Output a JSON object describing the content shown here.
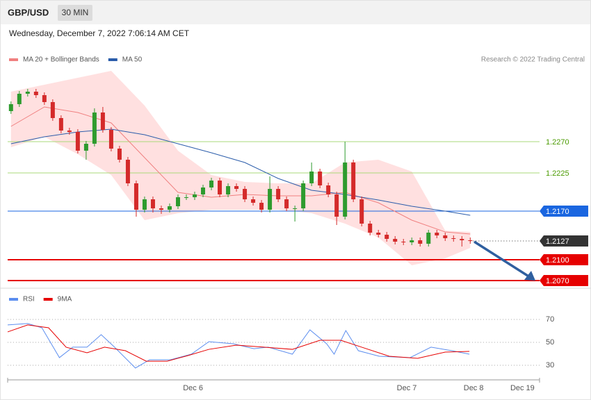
{
  "header": {
    "symbol": "GBP/USD",
    "timeframe": "30 MIN",
    "timestamp": "Wednesday, December 7, 2022 7:06:14 AM CET"
  },
  "chart_data": [
    {
      "type": "candlestick",
      "note": "Research © 2022 Trading Central",
      "xlim": [
        -0.4,
        63.3
      ],
      "ylim": [
        1.206,
        1.238
      ],
      "up_color": "#2e9b2e",
      "down_color": "#d42a2a",
      "open": [
        1.2314,
        1.2324,
        1.2339,
        1.2342,
        1.2337,
        1.2327,
        1.2304,
        1.2286,
        1.2284,
        1.2257,
        1.2267,
        1.2312,
        1.2287,
        1.226,
        1.2244,
        1.221,
        1.2172,
        1.2187,
        1.2174,
        1.2172,
        1.2177,
        1.219,
        1.219,
        1.2194,
        1.2204,
        1.2214,
        1.2194,
        1.2206,
        1.2202,
        1.2187,
        1.2182,
        1.2172,
        1.2202,
        1.2187,
        1.2174,
        1.2174,
        1.221,
        1.2227,
        1.2207,
        1.2194,
        1.2162,
        1.224,
        1.2187,
        1.2152,
        1.2139,
        1.2136,
        1.213,
        1.2126,
        1.2125,
        1.2128,
        1.2123,
        1.2139,
        1.2135,
        1.2131,
        1.213,
        1.2128
      ],
      "high": [
        1.2328,
        1.2343,
        1.2346,
        1.2346,
        1.2341,
        1.2331,
        1.2308,
        1.229,
        1.2288,
        1.2271,
        1.2318,
        1.232,
        1.2291,
        1.2264,
        1.2248,
        1.2214,
        1.2191,
        1.2191,
        1.2178,
        1.2181,
        1.2194,
        1.2194,
        1.2198,
        1.2208,
        1.2218,
        1.2218,
        1.221,
        1.221,
        1.2206,
        1.2191,
        1.2186,
        1.222,
        1.2206,
        1.2191,
        1.2178,
        1.2214,
        1.224,
        1.2231,
        1.2211,
        1.2198,
        1.227,
        1.2244,
        1.2191,
        1.2156,
        1.2143,
        1.214,
        1.2134,
        1.213,
        1.2132,
        1.2132,
        1.2143,
        1.2143,
        1.2139,
        1.2135,
        1.2134,
        1.2132
      ],
      "low": [
        1.231,
        1.232,
        1.2335,
        1.2333,
        1.2323,
        1.23,
        1.2282,
        1.228,
        1.2253,
        1.2244,
        1.2263,
        1.2283,
        1.2256,
        1.224,
        1.2206,
        1.2162,
        1.2168,
        1.2168,
        1.2166,
        1.2168,
        1.2173,
        1.2186,
        1.2186,
        1.219,
        1.22,
        1.219,
        1.219,
        1.2198,
        1.2183,
        1.2178,
        1.2168,
        1.2168,
        1.2183,
        1.217,
        1.2155,
        1.217,
        1.2206,
        1.2203,
        1.219,
        1.215,
        1.2158,
        1.2183,
        1.2148,
        1.2135,
        1.2132,
        1.2126,
        1.2122,
        1.2121,
        1.2121,
        1.2119,
        1.2119,
        1.2131,
        1.2127,
        1.2126,
        1.2119,
        1.2123
      ],
      "close": [
        1.2324,
        1.2339,
        1.2342,
        1.2337,
        1.2327,
        1.2304,
        1.2286,
        1.2284,
        1.2257,
        1.2267,
        1.2312,
        1.2287,
        1.226,
        1.2244,
        1.221,
        1.2172,
        1.2187,
        1.2174,
        1.2172,
        1.2177,
        1.219,
        1.219,
        1.2194,
        1.2204,
        1.2214,
        1.2194,
        1.2206,
        1.2202,
        1.2187,
        1.2182,
        1.2172,
        1.2202,
        1.2187,
        1.2174,
        1.2174,
        1.221,
        1.2227,
        1.2207,
        1.2194,
        1.2162,
        1.224,
        1.2187,
        1.2152,
        1.2139,
        1.2136,
        1.213,
        1.2126,
        1.2125,
        1.2128,
        1.2123,
        1.2139,
        1.2135,
        1.2131,
        1.213,
        1.2128,
        1.2127
      ],
      "overlays": [
        {
          "name": "MA 20 + Bollinger Bands",
          "color": "#f08080",
          "band_color": "#ffd6d6",
          "x": [
            0,
            4,
            8,
            12,
            16,
            20,
            24,
            28,
            32,
            36,
            40,
            44,
            48,
            52,
            55
          ],
          "values": [
            1.2292,
            1.232,
            1.2312,
            1.2297,
            1.2247,
            1.2197,
            1.219,
            1.2194,
            1.2192,
            1.2192,
            1.2197,
            1.2182,
            1.2157,
            1.214,
            1.2137
          ],
          "upper": [
            1.2342,
            1.2352,
            1.2362,
            1.2372,
            1.2322,
            1.2257,
            1.2222,
            1.2212,
            1.221,
            1.221,
            1.224,
            1.2244,
            1.2227,
            1.2142,
            1.214
          ],
          "lower": [
            1.2262,
            1.2277,
            1.2252,
            1.2222,
            1.2157,
            1.2167,
            1.2172,
            1.2172,
            1.2172,
            1.2167,
            1.2152,
            1.2132,
            1.2092,
            1.2102,
            1.2117
          ]
        },
        {
          "name": "MA 50",
          "color": "#2a5caa",
          "x": [
            0,
            4,
            8,
            12,
            16,
            20,
            24,
            28,
            32,
            36,
            40,
            44,
            48,
            52,
            55
          ],
          "values": [
            1.2267,
            1.2277,
            1.2284,
            1.2288,
            1.228,
            1.2267,
            1.2254,
            1.224,
            1.2217,
            1.22,
            1.2194,
            1.2186,
            1.2177,
            1.217,
            1.2164
          ]
        }
      ],
      "levels": [
        {
          "value": 1.227,
          "label": "1.2270",
          "color": "#a8d878",
          "text_color": "#4a9a00"
        },
        {
          "value": 1.2225,
          "color": "#a8d878",
          "text_color": "#4a9a00"
        },
        {
          "value": 1.217,
          "label": "1.2170",
          "color": "#1a66e0",
          "label_box": true
        },
        {
          "value": 1.2127,
          "color": "#333333",
          "label_box": true,
          "dotted": true
        },
        {
          "value": 1.21,
          "label": "1.2100",
          "color": "#e60000",
          "label_box": true,
          "thick": true
        },
        {
          "value": 1.207,
          "label": "1.2070",
          "color": "#e60000",
          "label_box": true,
          "thick": true
        }
      ]
    },
    {
      "type": "line",
      "xlim": [
        -0.4,
        63.3
      ],
      "xticks": [
        {
          "value": 21.8,
          "label": "Dec 6"
        },
        {
          "value": 47.4,
          "label": "Dec 7"
        },
        {
          "value": 55.4,
          "label": "Dec 8"
        },
        {
          "value": 61.25,
          "label": "Dec 19"
        }
      ],
      "ylim": [
        18.5,
        94.2
      ],
      "yticks": [
        30,
        50,
        70
      ],
      "grid": true,
      "series": [
        {
          "name": "RSI",
          "color": "#5b8def",
          "x": [
            -0.4,
            2,
            3.7,
            5.8,
            7.4,
            9.1,
            10.8,
            12.4,
            14.9,
            16.6,
            19.1,
            21.6,
            23.7,
            26.6,
            29.1,
            30.8,
            33.7,
            35.8,
            37.8,
            38.7,
            40.1,
            41.6,
            44.1,
            47.8,
            50.3,
            52.8,
            54.9
          ],
          "values": [
            65.2,
            66.4,
            62.7,
            36.7,
            45.8,
            45.8,
            56.7,
            45.8,
            27.6,
            34.8,
            34.8,
            39.7,
            50.6,
            48.8,
            44.5,
            45.8,
            39.7,
            60.9,
            48.8,
            39.7,
            60.3,
            42.7,
            37.9,
            36.7,
            45.8,
            42.7,
            39.7
          ]
        },
        {
          "name": "9MA",
          "color": "#e60000",
          "x": [
            -0.4,
            2,
            4.5,
            6.6,
            9.1,
            11.2,
            13.7,
            16.2,
            18.7,
            21.2,
            23.7,
            27,
            30.3,
            33.7,
            37,
            39.5,
            42,
            45.3,
            48.7,
            52,
            54.9
          ],
          "values": [
            59.1,
            65.2,
            62.7,
            45.8,
            40.9,
            45.8,
            42.7,
            33.6,
            33.6,
            38.5,
            43.9,
            47.6,
            45.8,
            43.9,
            51.8,
            51.8,
            45.8,
            37.9,
            36.1,
            41.5,
            42.1
          ]
        }
      ]
    }
  ]
}
